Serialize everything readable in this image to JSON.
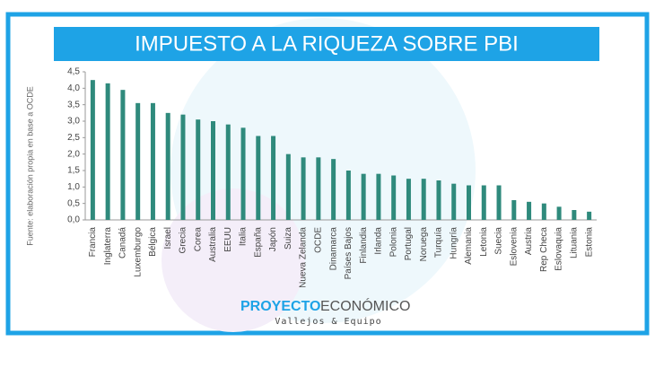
{
  "chart_data": {
    "type": "bar",
    "title": "IMPUESTO A LA RIQUEZA SOBRE PBI",
    "source": "Fuente: elaboración propia en base  a OCDE",
    "brand": {
      "name_a": "PROYECTO",
      "name_b": "ECONÓMICO",
      "tagline": "Vallejos & Equipo"
    },
    "categories": [
      "Francia",
      "Inglaterra",
      "Canadá",
      "Luxemburgo",
      "Bélgica",
      "Israel",
      "Grecia",
      "Corea",
      "Australia",
      "EEUU",
      "Italia",
      "España",
      "Japón",
      "Suiza",
      "Nueva Zelanda",
      "OCDE",
      "Dinamarca",
      "Países Bajos",
      "Finlandia",
      "Irlanda",
      "Polonia",
      "Portugal",
      "Noruega",
      "Turquía",
      "Hungría",
      "Alemania",
      "Letonia",
      "Suecia",
      "Eslovenia",
      "Austria",
      "Rep Checa",
      "Eslovaquia",
      "Lituania",
      "Estonia"
    ],
    "values": [
      4.25,
      4.15,
      3.95,
      3.55,
      3.55,
      3.25,
      3.2,
      3.05,
      3.0,
      2.9,
      2.8,
      2.55,
      2.55,
      2.0,
      1.9,
      1.9,
      1.85,
      1.5,
      1.4,
      1.4,
      1.35,
      1.25,
      1.25,
      1.2,
      1.1,
      1.05,
      1.05,
      1.05,
      0.6,
      0.55,
      0.5,
      0.4,
      0.3,
      0.25
    ],
    "color": "#2f8a7c",
    "ylim": [
      0,
      4.5
    ],
    "yticks": [
      {
        "value": 0,
        "label": "0,0"
      },
      {
        "value": 0.5,
        "label": "0,5"
      },
      {
        "value": 1,
        "label": "1,0"
      },
      {
        "value": 1.5,
        "label": "1,5"
      },
      {
        "value": 2,
        "label": "2,0"
      },
      {
        "value": 2.5,
        "label": "2,5"
      },
      {
        "value": 3,
        "label": "3,0"
      },
      {
        "value": 3.5,
        "label": "3,5"
      },
      {
        "value": 4,
        "label": "4,0"
      },
      {
        "value": 4.5,
        "label": "4,5"
      }
    ],
    "grid": false
  }
}
